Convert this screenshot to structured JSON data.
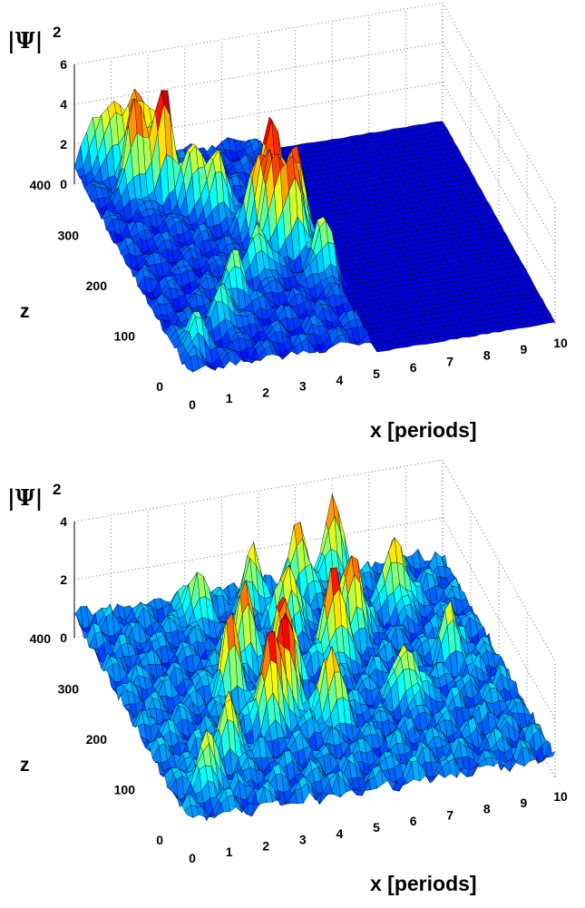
{
  "chart_data": [
    {
      "type": "surface",
      "zlabel": "|Ψ|",
      "zlabel_sup": "2",
      "ylabel": "z",
      "xlabel": "x  [periods]",
      "x_ticks": [
        "0",
        "1",
        "2",
        "3",
        "4",
        "5",
        "6",
        "7",
        "8",
        "9",
        "10"
      ],
      "y_ticks": [
        "0",
        "100",
        "200",
        "300",
        "400"
      ],
      "z_ticks": [
        "0",
        "2",
        "4",
        "6"
      ],
      "xlim": [
        0,
        10
      ],
      "ylim": [
        0,
        400
      ],
      "zlim": [
        0,
        6
      ],
      "colormap": "jet",
      "grid": true,
      "description_values": {
        "wave_extent_x_end": 5,
        "peak_value": 5.6
      },
      "peaks": [
        {
          "x": 0.5,
          "z": 400,
          "h": 2.2
        },
        {
          "x": 1.0,
          "z": 390,
          "h": 3.0
        },
        {
          "x": 1.5,
          "z": 380,
          "h": 3.6
        },
        {
          "x": 2.0,
          "z": 370,
          "h": 2.6
        },
        {
          "x": 1.2,
          "z": 340,
          "h": 4.8
        },
        {
          "x": 1.9,
          "z": 330,
          "h": 5.6
        },
        {
          "x": 2.5,
          "z": 300,
          "h": 3.2
        },
        {
          "x": 3.0,
          "z": 280,
          "h": 3.0
        },
        {
          "x": 4.2,
          "z": 250,
          "h": 5.0
        },
        {
          "x": 3.7,
          "z": 230,
          "h": 4.0
        },
        {
          "x": 4.6,
          "z": 220,
          "h": 4.2
        },
        {
          "x": 3.9,
          "z": 200,
          "h": 4.3
        },
        {
          "x": 4.4,
          "z": 190,
          "h": 3.7
        },
        {
          "x": 3.2,
          "z": 160,
          "h": 2.6
        },
        {
          "x": 4.8,
          "z": 140,
          "h": 2.8
        },
        {
          "x": 2.2,
          "z": 120,
          "h": 2.2
        },
        {
          "x": 1.6,
          "z": 80,
          "h": 2.0
        },
        {
          "x": 0.5,
          "z": 40,
          "h": 1.8
        }
      ]
    },
    {
      "type": "surface",
      "zlabel": "|Ψ|",
      "zlabel_sup": "2",
      "ylabel": "z",
      "xlabel": "x [periods]",
      "x_ticks": [
        "0",
        "1",
        "2",
        "3",
        "4",
        "5",
        "6",
        "7",
        "8",
        "9",
        "10"
      ],
      "y_ticks": [
        "0",
        "100",
        "200",
        "300",
        "400"
      ],
      "z_ticks": [
        "0",
        "2",
        "4"
      ],
      "xlim": [
        0,
        10
      ],
      "ylim": [
        0,
        400
      ],
      "zlim": [
        0,
        4
      ],
      "colormap": "jet",
      "grid": true,
      "description_values": {
        "wave_extent_x_end": 10,
        "peak_value": 3.6
      },
      "peaks": [
        {
          "x": 7.0,
          "z": 400,
          "h": 2.6
        },
        {
          "x": 6.0,
          "z": 380,
          "h": 2.2
        },
        {
          "x": 4.6,
          "z": 370,
          "h": 1.8
        },
        {
          "x": 3.0,
          "z": 360,
          "h": 1.6
        },
        {
          "x": 8.2,
          "z": 330,
          "h": 2.4
        },
        {
          "x": 5.2,
          "z": 320,
          "h": 2.5
        },
        {
          "x": 6.7,
          "z": 290,
          "h": 3.0
        },
        {
          "x": 3.6,
          "z": 270,
          "h": 2.4
        },
        {
          "x": 5.9,
          "z": 250,
          "h": 3.2
        },
        {
          "x": 4.3,
          "z": 220,
          "h": 3.3
        },
        {
          "x": 2.8,
          "z": 210,
          "h": 2.5
        },
        {
          "x": 4.0,
          "z": 170,
          "h": 3.6
        },
        {
          "x": 3.4,
          "z": 150,
          "h": 3.4
        },
        {
          "x": 5.0,
          "z": 140,
          "h": 2.4
        },
        {
          "x": 7.2,
          "z": 160,
          "h": 2.0
        },
        {
          "x": 2.0,
          "z": 110,
          "h": 2.0
        },
        {
          "x": 1.0,
          "z": 60,
          "h": 1.8
        },
        {
          "x": 8.8,
          "z": 220,
          "h": 1.5
        }
      ]
    }
  ]
}
